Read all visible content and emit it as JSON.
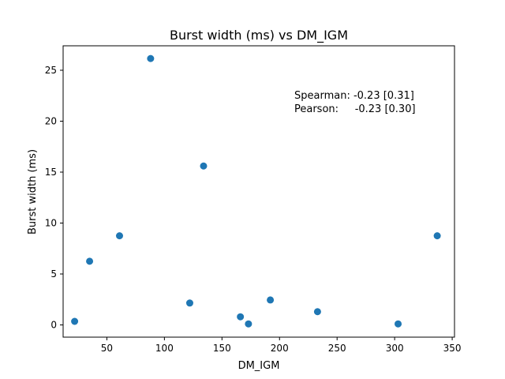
{
  "chart_data": {
    "type": "scatter",
    "title": "Burst width (ms) vs DM_IGM",
    "xlabel": "DM_IGM",
    "ylabel": "Burst width (ms)",
    "xlim": [
      12,
      352
    ],
    "ylim": [
      -1.2,
      27.4
    ],
    "xticks": [
      50,
      100,
      150,
      200,
      250,
      300,
      350
    ],
    "yticks": [
      0,
      5,
      10,
      15,
      20,
      25
    ],
    "marker_color": "#1f77b4",
    "points": [
      {
        "x": 22,
        "y": 0.35
      },
      {
        "x": 35,
        "y": 6.25
      },
      {
        "x": 61,
        "y": 8.75
      },
      {
        "x": 88,
        "y": 26.15
      },
      {
        "x": 122,
        "y": 2.15
      },
      {
        "x": 134,
        "y": 15.6
      },
      {
        "x": 166,
        "y": 0.8
      },
      {
        "x": 173,
        "y": 0.1
      },
      {
        "x": 192,
        "y": 2.45
      },
      {
        "x": 233,
        "y": 1.3
      },
      {
        "x": 303,
        "y": 0.1
      },
      {
        "x": 337,
        "y": 8.75
      }
    ],
    "annotation": {
      "line1": "Spearman: -0.23 [0.31]",
      "line2": "Pearson:     -0.23 [0.30]"
    }
  }
}
